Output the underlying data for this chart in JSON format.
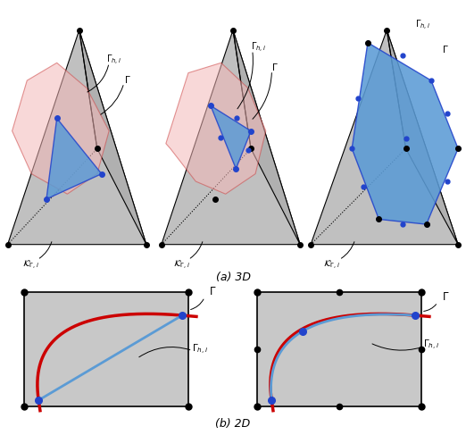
{
  "fig_width": 5.22,
  "fig_height": 4.87,
  "bg_color": "#d3d3d3",
  "box_color": "#c8c8c8",
  "blue_fill": "#5b9bd5",
  "red_fill": "#f4b8b8",
  "blue_line": "#2244cc",
  "red_line": "#cc0000",
  "node_color": "#111111",
  "blue_node": "#2244cc",
  "label_a": "(a) 3D",
  "label_b": "(b) 2D"
}
